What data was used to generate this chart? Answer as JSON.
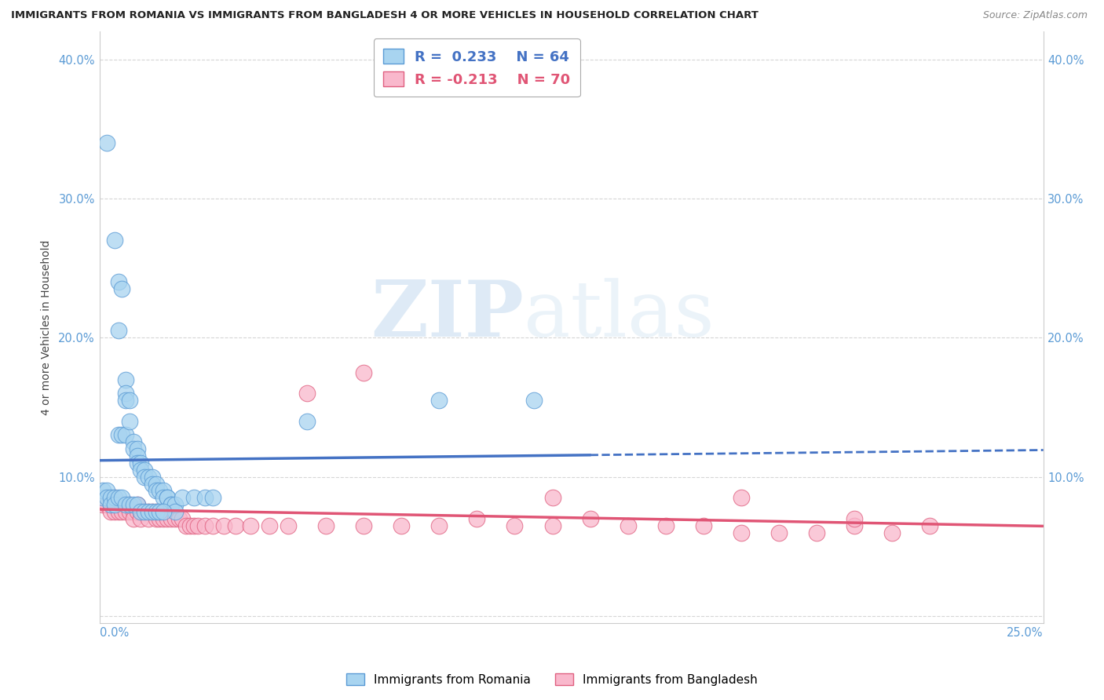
{
  "title": "IMMIGRANTS FROM ROMANIA VS IMMIGRANTS FROM BANGLADESH 4 OR MORE VEHICLES IN HOUSEHOLD CORRELATION CHART",
  "source": "Source: ZipAtlas.com",
  "ylabel": "4 or more Vehicles in Household",
  "xlim": [
    0.0,
    0.25
  ],
  "ylim": [
    -0.005,
    0.42
  ],
  "y_ticks": [
    0.0,
    0.1,
    0.2,
    0.3,
    0.4
  ],
  "y_tick_labels": [
    "",
    "10.0%",
    "20.0%",
    "30.0%",
    "40.0%"
  ],
  "romania_R": 0.233,
  "romania_N": 64,
  "bangladesh_R": -0.213,
  "bangladesh_N": 70,
  "romania_color": "#a8d4f0",
  "bangladesh_color": "#f9b8cc",
  "romania_edge_color": "#5b9bd5",
  "bangladesh_edge_color": "#e06080",
  "romania_line_color": "#4472c4",
  "bangladesh_line_color": "#e05575",
  "romania_scatter": [
    [
      0.002,
      0.34
    ],
    [
      0.004,
      0.27
    ],
    [
      0.005,
      0.24
    ],
    [
      0.006,
      0.235
    ],
    [
      0.005,
      0.205
    ],
    [
      0.007,
      0.17
    ],
    [
      0.007,
      0.16
    ],
    [
      0.007,
      0.155
    ],
    [
      0.005,
      0.13
    ],
    [
      0.006,
      0.13
    ],
    [
      0.007,
      0.13
    ],
    [
      0.008,
      0.155
    ],
    [
      0.008,
      0.14
    ],
    [
      0.009,
      0.125
    ],
    [
      0.009,
      0.12
    ],
    [
      0.01,
      0.12
    ],
    [
      0.01,
      0.115
    ],
    [
      0.01,
      0.11
    ],
    [
      0.011,
      0.11
    ],
    [
      0.011,
      0.105
    ],
    [
      0.012,
      0.105
    ],
    [
      0.012,
      0.1
    ],
    [
      0.013,
      0.1
    ],
    [
      0.014,
      0.1
    ],
    [
      0.014,
      0.095
    ],
    [
      0.015,
      0.095
    ],
    [
      0.015,
      0.09
    ],
    [
      0.016,
      0.09
    ],
    [
      0.017,
      0.09
    ],
    [
      0.017,
      0.085
    ],
    [
      0.018,
      0.085
    ],
    [
      0.018,
      0.085
    ],
    [
      0.019,
      0.08
    ],
    [
      0.019,
      0.08
    ],
    [
      0.02,
      0.08
    ],
    [
      0.02,
      0.075
    ],
    [
      0.001,
      0.085
    ],
    [
      0.001,
      0.09
    ],
    [
      0.002,
      0.09
    ],
    [
      0.002,
      0.085
    ],
    [
      0.003,
      0.085
    ],
    [
      0.003,
      0.08
    ],
    [
      0.004,
      0.085
    ],
    [
      0.004,
      0.08
    ],
    [
      0.005,
      0.085
    ],
    [
      0.006,
      0.085
    ],
    [
      0.007,
      0.08
    ],
    [
      0.008,
      0.08
    ],
    [
      0.009,
      0.08
    ],
    [
      0.01,
      0.08
    ],
    [
      0.011,
      0.075
    ],
    [
      0.012,
      0.075
    ],
    [
      0.013,
      0.075
    ],
    [
      0.014,
      0.075
    ],
    [
      0.015,
      0.075
    ],
    [
      0.016,
      0.075
    ],
    [
      0.017,
      0.075
    ],
    [
      0.022,
      0.085
    ],
    [
      0.025,
      0.085
    ],
    [
      0.028,
      0.085
    ],
    [
      0.03,
      0.085
    ],
    [
      0.055,
      0.14
    ],
    [
      0.09,
      0.155
    ],
    [
      0.115,
      0.155
    ]
  ],
  "bangladesh_scatter": [
    [
      0.001,
      0.085
    ],
    [
      0.001,
      0.08
    ],
    [
      0.002,
      0.085
    ],
    [
      0.002,
      0.08
    ],
    [
      0.003,
      0.085
    ],
    [
      0.003,
      0.08
    ],
    [
      0.003,
      0.075
    ],
    [
      0.004,
      0.085
    ],
    [
      0.004,
      0.08
    ],
    [
      0.004,
      0.075
    ],
    [
      0.005,
      0.08
    ],
    [
      0.005,
      0.075
    ],
    [
      0.006,
      0.08
    ],
    [
      0.006,
      0.075
    ],
    [
      0.007,
      0.08
    ],
    [
      0.007,
      0.075
    ],
    [
      0.008,
      0.08
    ],
    [
      0.008,
      0.075
    ],
    [
      0.009,
      0.075
    ],
    [
      0.009,
      0.07
    ],
    [
      0.01,
      0.08
    ],
    [
      0.01,
      0.075
    ],
    [
      0.011,
      0.075
    ],
    [
      0.011,
      0.07
    ],
    [
      0.012,
      0.075
    ],
    [
      0.013,
      0.075
    ],
    [
      0.013,
      0.07
    ],
    [
      0.014,
      0.075
    ],
    [
      0.015,
      0.075
    ],
    [
      0.015,
      0.07
    ],
    [
      0.016,
      0.07
    ],
    [
      0.017,
      0.07
    ],
    [
      0.018,
      0.07
    ],
    [
      0.019,
      0.07
    ],
    [
      0.02,
      0.07
    ],
    [
      0.021,
      0.07
    ],
    [
      0.022,
      0.07
    ],
    [
      0.023,
      0.065
    ],
    [
      0.024,
      0.065
    ],
    [
      0.025,
      0.065
    ],
    [
      0.026,
      0.065
    ],
    [
      0.028,
      0.065
    ],
    [
      0.03,
      0.065
    ],
    [
      0.033,
      0.065
    ],
    [
      0.036,
      0.065
    ],
    [
      0.04,
      0.065
    ],
    [
      0.045,
      0.065
    ],
    [
      0.05,
      0.065
    ],
    [
      0.06,
      0.065
    ],
    [
      0.07,
      0.065
    ],
    [
      0.08,
      0.065
    ],
    [
      0.09,
      0.065
    ],
    [
      0.1,
      0.07
    ],
    [
      0.11,
      0.065
    ],
    [
      0.12,
      0.065
    ],
    [
      0.13,
      0.07
    ],
    [
      0.14,
      0.065
    ],
    [
      0.15,
      0.065
    ],
    [
      0.16,
      0.065
    ],
    [
      0.17,
      0.06
    ],
    [
      0.18,
      0.06
    ],
    [
      0.19,
      0.06
    ],
    [
      0.2,
      0.065
    ],
    [
      0.21,
      0.06
    ],
    [
      0.07,
      0.175
    ],
    [
      0.055,
      0.16
    ],
    [
      0.12,
      0.085
    ],
    [
      0.17,
      0.085
    ],
    [
      0.2,
      0.07
    ],
    [
      0.22,
      0.065
    ]
  ],
  "watermark_zip": "ZIP",
  "watermark_atlas": "atlas",
  "legend_romania_label": "Immigrants from Romania",
  "legend_bangladesh_label": "Immigrants from Bangladesh"
}
